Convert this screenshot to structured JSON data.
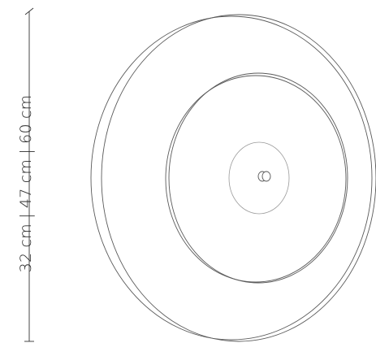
{
  "dimension": {
    "label": "32 cm | 47 cm | 60 cm"
  },
  "colors": {
    "line": "#5a5a5a",
    "dimension_line": "#333333",
    "inner_ring": "#9a9a9a",
    "background": "#ffffff"
  }
}
